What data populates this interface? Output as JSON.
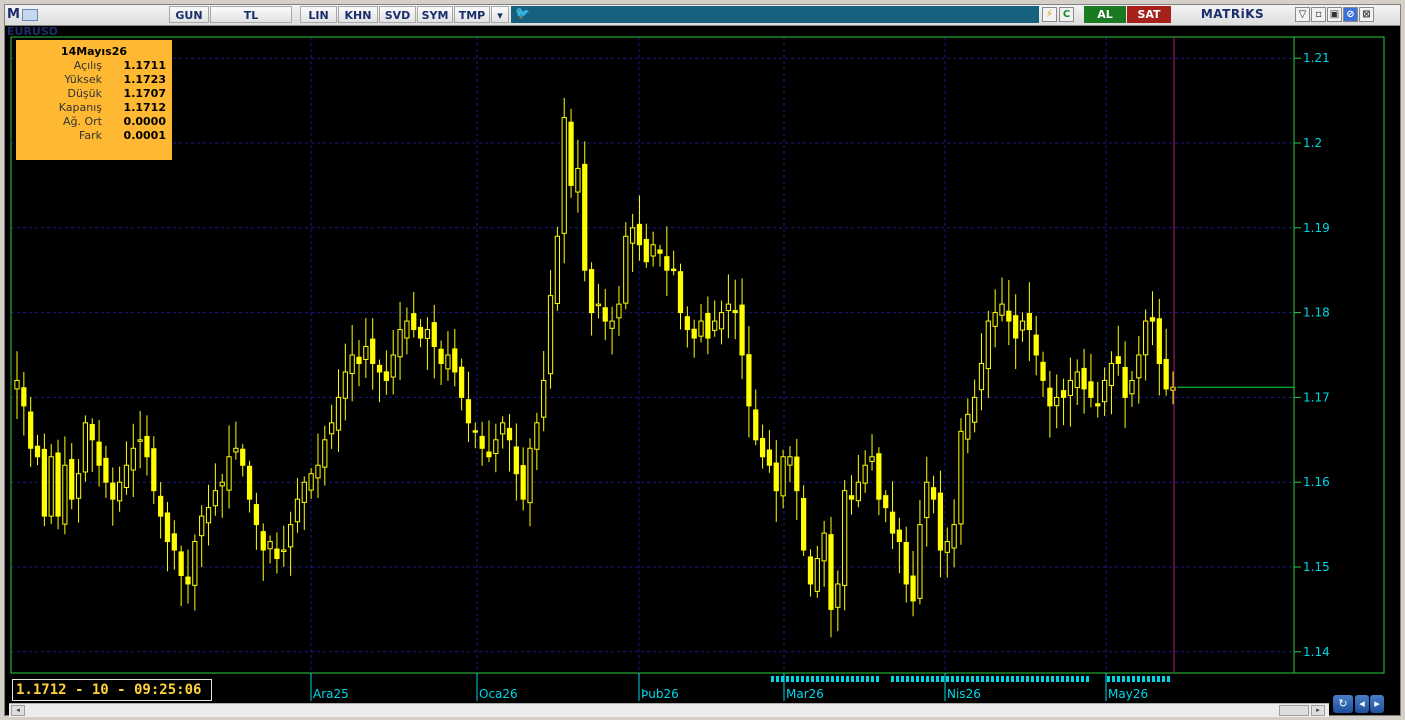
{
  "toolbar": {
    "app_letter": "M",
    "symbol": "EURUSD",
    "period": "GUN",
    "currency": "TL",
    "buttons": [
      "LIN",
      "KHN",
      "SVD",
      "SYM",
      "TMP"
    ],
    "dropdown_glyph": "▾",
    "twitter_glyph": "🐦",
    "alert_glyph": "⚡",
    "c_label": "C",
    "al_label": "AL",
    "sat_label": "SAT",
    "brand": "MATRiKS",
    "window_controls": [
      "▽",
      "▫",
      "▣",
      "⊘",
      "⊠"
    ]
  },
  "info_box": {
    "date": "14Mayıs26",
    "rows": [
      {
        "label": "Açılış",
        "value": "1.1711"
      },
      {
        "label": "Yüksek",
        "value": "1.1723"
      },
      {
        "label": "Düşük",
        "value": "1.1707"
      },
      {
        "label": "Kapanış",
        "value": "1.1712"
      },
      {
        "label": "Ağ. Ort",
        "value": "0.0000"
      },
      {
        "label": "Fark",
        "value": "0.0001"
      }
    ]
  },
  "price_readout": "1.1712 - 10 - 09:25:06",
  "colors": {
    "background": "#000000",
    "candle": "#ffff00",
    "grid": "#1a1a8a",
    "axis_text": "#00d6e6",
    "last_price_line": "#00e040",
    "cursor_line": "#b01e7a",
    "info_bg": "#ffb831"
  },
  "chart_data": {
    "type": "candlestick",
    "symbol": "EURUSD",
    "y_ticks": [
      1.14,
      1.15,
      1.16,
      1.17,
      1.18,
      1.19,
      1.2,
      1.21
    ],
    "ylim": [
      1.1375,
      1.2125
    ],
    "x_ticks": [
      "Ara25",
      "Oca26",
      "Þub26",
      "Mar26",
      "Nis26",
      "May26"
    ],
    "last_close": 1.1712,
    "grid": true,
    "series": [
      {
        "name": "EURUSD",
        "close": [
          1.172,
          1.169,
          1.164,
          1.163,
          1.156,
          1.163,
          1.156,
          1.162,
          1.158,
          1.161,
          1.167,
          1.165,
          1.162,
          1.16,
          1.158,
          1.16,
          1.162,
          1.164,
          1.165,
          1.163,
          1.159,
          1.156,
          1.153,
          1.152,
          1.149,
          1.148,
          1.153,
          1.156,
          1.157,
          1.159,
          1.16,
          1.163,
          1.164,
          1.162,
          1.158,
          1.155,
          1.152,
          1.153,
          1.151,
          1.152,
          1.155,
          1.158,
          1.16,
          1.161,
          1.162,
          1.165,
          1.167,
          1.17,
          1.173,
          1.175,
          1.174,
          1.176,
          1.174,
          1.173,
          1.172,
          1.175,
          1.178,
          1.179,
          1.178,
          1.177,
          1.178,
          1.176,
          1.174,
          1.175,
          1.173,
          1.17,
          1.167,
          1.166,
          1.164,
          1.163,
          1.165,
          1.167,
          1.165,
          1.161,
          1.158,
          1.164,
          1.167,
          1.172,
          1.182,
          1.189,
          1.203,
          1.195,
          1.197,
          1.185,
          1.18,
          1.181,
          1.179,
          1.179,
          1.181,
          1.189,
          1.19,
          1.188,
          1.186,
          1.188,
          1.187,
          1.185,
          1.185,
          1.18,
          1.178,
          1.177,
          1.179,
          1.177,
          1.179,
          1.18,
          1.181,
          1.18,
          1.175,
          1.169,
          1.165,
          1.163,
          1.162,
          1.159,
          1.163,
          1.163,
          1.159,
          1.152,
          1.148,
          1.151,
          1.154,
          1.145,
          1.148,
          1.159,
          1.158,
          1.16,
          1.162,
          1.163,
          1.158,
          1.157,
          1.154,
          1.153,
          1.148,
          1.146,
          1.155,
          1.16,
          1.158,
          1.152,
          1.153,
          1.155,
          1.166,
          1.168,
          1.17,
          1.174,
          1.179,
          1.18,
          1.181,
          1.179,
          1.177,
          1.179,
          1.178,
          1.175,
          1.172,
          1.169,
          1.17,
          1.17,
          1.172,
          1.173,
          1.171,
          1.17,
          1.169,
          1.172,
          1.174,
          1.174,
          1.17,
          1.172,
          1.175,
          1.179,
          1.179,
          1.174,
          1.171,
          1.1712
        ]
      }
    ]
  }
}
